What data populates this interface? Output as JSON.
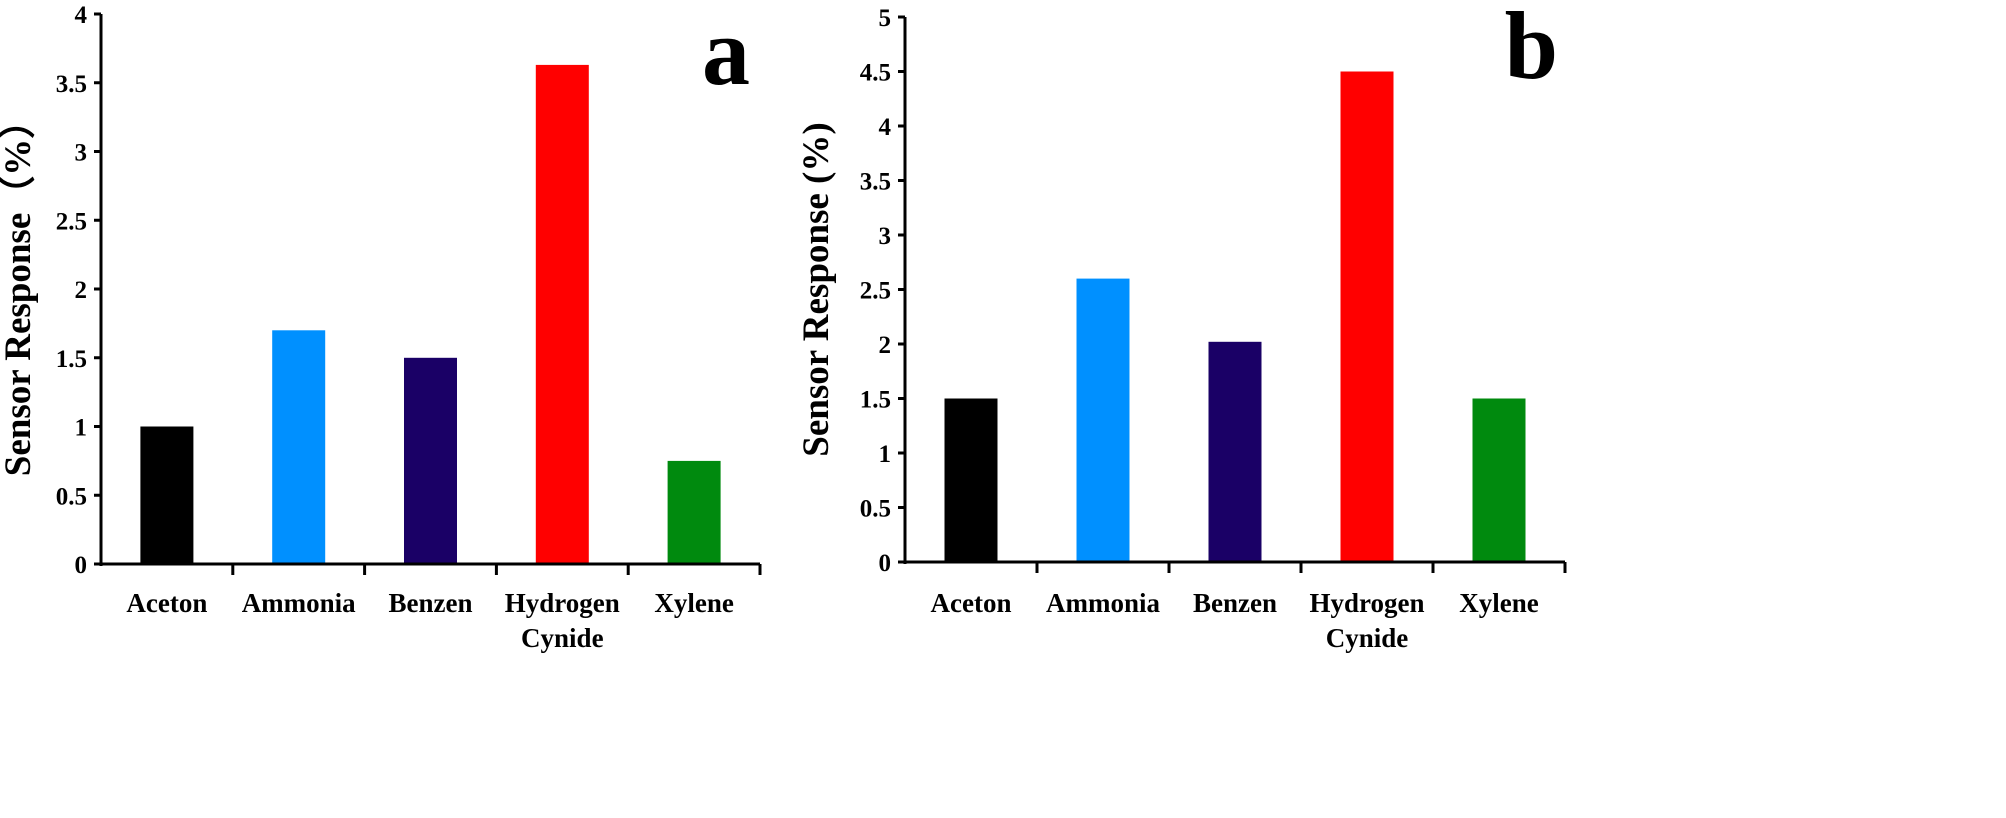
{
  "chart_data": [
    {
      "type": "bar",
      "panel_label": "a",
      "ylabel": "Sensor Response（%）",
      "xlabel": "",
      "ylim": [
        0,
        4
      ],
      "yticks": [
        0,
        0.5,
        1,
        1.5,
        2,
        2.5,
        3,
        3.5,
        4
      ],
      "ytick_labels": [
        "0",
        "0.5",
        "1",
        "1.5",
        "2",
        "2.5",
        "3",
        "3.5",
        "4"
      ],
      "categories": [
        [
          "Aceton"
        ],
        [
          "Ammonia"
        ],
        [
          "Benzen"
        ],
        [
          "Hydrogen",
          "Cynide"
        ],
        [
          "Xylene"
        ]
      ],
      "values": [
        1.0,
        1.7,
        1.5,
        3.63,
        0.75
      ],
      "colors": [
        "#000000",
        "#0090ff",
        "#1a0066",
        "#ff0000",
        "#008a0e"
      ],
      "grid": false,
      "legend": "none"
    },
    {
      "type": "bar",
      "panel_label": "b",
      "ylabel": "Sensor Response (%)",
      "xlabel": "",
      "ylim": [
        0,
        5
      ],
      "yticks": [
        0,
        0.5,
        1,
        1.5,
        2,
        2.5,
        3,
        3.5,
        4,
        4.5,
        5
      ],
      "ytick_labels": [
        "0",
        "0.5",
        "1",
        "1.5",
        "2",
        "2.5",
        "3",
        "3.5",
        "4",
        "4.5",
        "5"
      ],
      "categories": [
        [
          "Aceton"
        ],
        [
          "Ammonia"
        ],
        [
          "Benzen"
        ],
        [
          "Hydrogen",
          "Cynide"
        ],
        [
          "Xylene"
        ]
      ],
      "values": [
        1.5,
        2.6,
        2.02,
        4.5,
        1.5
      ],
      "colors": [
        "#000000",
        "#0090ff",
        "#1a0066",
        "#ff0000",
        "#008a0e"
      ],
      "grid": false,
      "legend": "none"
    }
  ]
}
